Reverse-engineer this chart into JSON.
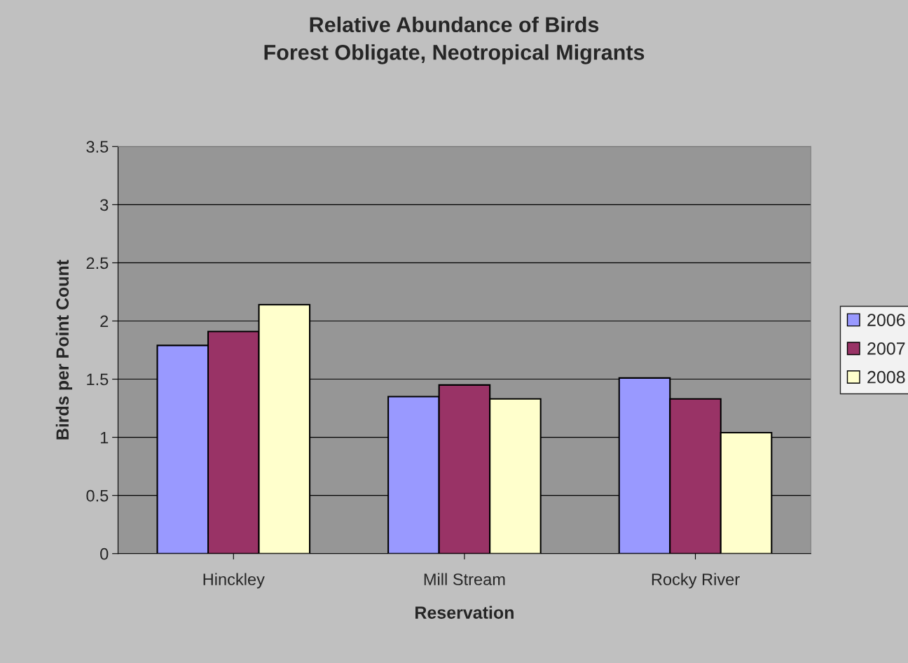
{
  "chart_data": {
    "type": "bar",
    "title": "Relative Abundance of Birds\nForest Obligate, Neotropical Migrants",
    "xlabel": "Reservation",
    "ylabel": "Birds per Point Count",
    "categories": [
      "Hinckley",
      "Mill Stream",
      "Rocky River"
    ],
    "series": [
      {
        "name": "2006",
        "color": "#9999ff",
        "values": [
          1.79,
          1.35,
          1.51
        ]
      },
      {
        "name": "2007",
        "color": "#993366",
        "values": [
          1.91,
          1.45,
          1.33
        ]
      },
      {
        "name": "2008",
        "color": "#ffffcc",
        "values": [
          2.14,
          1.33,
          1.04
        ]
      }
    ],
    "ylim": [
      0,
      3.5
    ],
    "yticks": [
      0,
      0.5,
      1,
      1.5,
      2,
      2.5,
      3,
      3.5
    ],
    "grid": "y",
    "legend": "right"
  }
}
